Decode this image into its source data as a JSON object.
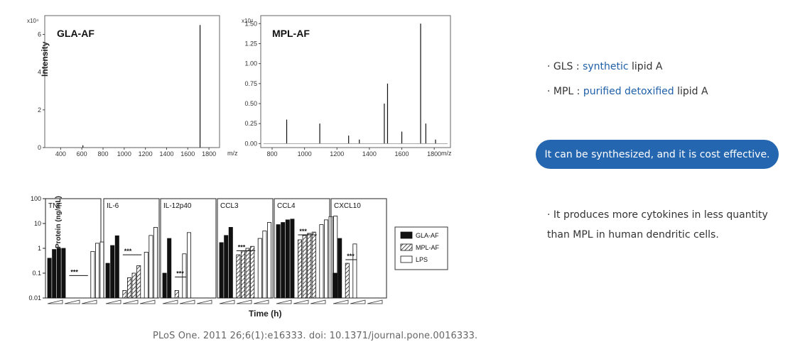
{
  "citation": "PLoS One. 2011 26;6(1):e16333. doi: 10.1371/journal.pone.0016333.",
  "right": {
    "bullet_mark": "·",
    "gls": {
      "prefix": "GLS : ",
      "highlight": "synthetic",
      "suffix": " lipid A"
    },
    "mpl": {
      "prefix": "MPL : ",
      "highlight": "purified detoxified",
      "suffix": " lipid A"
    },
    "pill_text": "It can be synthesized, and it is cost effective.",
    "cytokine_line1": "It produces more cytokines in less quantity",
    "cytokine_line2": "than MPL in human dendritic cells."
  },
  "colors": {
    "accent": "#2466b0",
    "highlight_text": "#1f5fa8"
  },
  "chart_data": [
    {
      "type": "line",
      "title": "GLA-AF",
      "ylabel": "Intensity",
      "xlabel": "m/z",
      "y_multiplier_label": "x10⁴",
      "xlim": [
        250,
        1900
      ],
      "ylim": [
        0,
        7
      ],
      "x_ticks": [
        400,
        600,
        800,
        1000,
        1200,
        1400,
        1600,
        1800
      ],
      "y_ticks": [
        0,
        2,
        4,
        6
      ],
      "peaks": [
        {
          "x": 610,
          "y": 0.12
        },
        {
          "x": 1716,
          "y": 6.5
        }
      ]
    },
    {
      "type": "line",
      "title": "MPL-AF",
      "xlabel": "m/z",
      "y_multiplier_label": "x10⁴",
      "xlim": [
        730,
        1900
      ],
      "ylim": [
        -0.05,
        1.6
      ],
      "x_ticks": [
        800,
        1000,
        1200,
        1400,
        1600,
        1800
      ],
      "y_ticks": [
        "0.00",
        "0.25",
        "0.50",
        "0.75",
        "1.00",
        "1.25",
        "1.50"
      ],
      "peaks": [
        {
          "x": 890,
          "y": 0.3
        },
        {
          "x": 1094,
          "y": 0.25
        },
        {
          "x": 1272,
          "y": 0.1
        },
        {
          "x": 1338,
          "y": 0.05
        },
        {
          "x": 1492,
          "y": 0.5
        },
        {
          "x": 1512,
          "y": 0.75
        },
        {
          "x": 1600,
          "y": 0.15
        },
        {
          "x": 1716,
          "y": 1.5
        },
        {
          "x": 1748,
          "y": 0.25
        },
        {
          "x": 1808,
          "y": 0.05
        }
      ]
    },
    {
      "type": "bar",
      "ylabel": "Protein (ng/mL)",
      "xlabel": "Time (h)",
      "y_scale": "log",
      "ylim": [
        0.01,
        100
      ],
      "y_ticks": [
        "0.01",
        "0.1",
        "1",
        "10",
        "100"
      ],
      "legend": [
        "GLA-AF",
        "MPL-AF",
        "LPS"
      ],
      "legend_position": "right",
      "panels": [
        {
          "label": "TNF",
          "sig": "***",
          "series": {
            "GLA-AF": [
              0.4,
              0.9,
              1.0,
              1.0
            ],
            "MPL-AF": [
              0.0,
              0.0,
              0.0,
              0.0
            ],
            "LPS": [
              0.75,
              1.6,
              1.8
            ]
          }
        },
        {
          "label": "IL-6",
          "sig": "***",
          "series": {
            "GLA-AF": [
              0.25,
              1.3,
              3.2
            ],
            "MPL-AF": [
              0.02,
              0.065,
              0.1,
              0.2
            ],
            "LPS": [
              0.7,
              3.3,
              7.0
            ]
          }
        },
        {
          "label": "IL-12p40",
          "sig": "***",
          "series": {
            "GLA-AF": [
              0.1,
              2.5
            ],
            "MPL-AF": [
              0.02
            ],
            "LPS": [
              0.6,
              4.3
            ]
          }
        },
        {
          "label": "CCL3",
          "sig": "***",
          "series": {
            "GLA-AF": [
              1.7,
              3.3,
              7.0
            ],
            "MPL-AF": [
              0.55,
              0.8,
              1.0,
              1.2
            ],
            "LPS": [
              2.5,
              5.0,
              11.0
            ]
          }
        },
        {
          "label": "CCL4",
          "sig": "***",
          "series": {
            "GLA-AF": [
              9.0,
              11.0,
              14.0,
              15.0
            ],
            "MPL-AF": [
              2.2,
              3.3,
              4.0,
              4.5
            ],
            "LPS": [
              9.0,
              14.0,
              19.0,
              20.0
            ]
          }
        },
        {
          "label": "CXCL10",
          "sig": "***",
          "series": {
            "GLA-AF": [
              0.1,
              2.5
            ],
            "MPL-AF": [
              0.25
            ],
            "LPS": [
              1.5
            ]
          }
        }
      ]
    }
  ]
}
